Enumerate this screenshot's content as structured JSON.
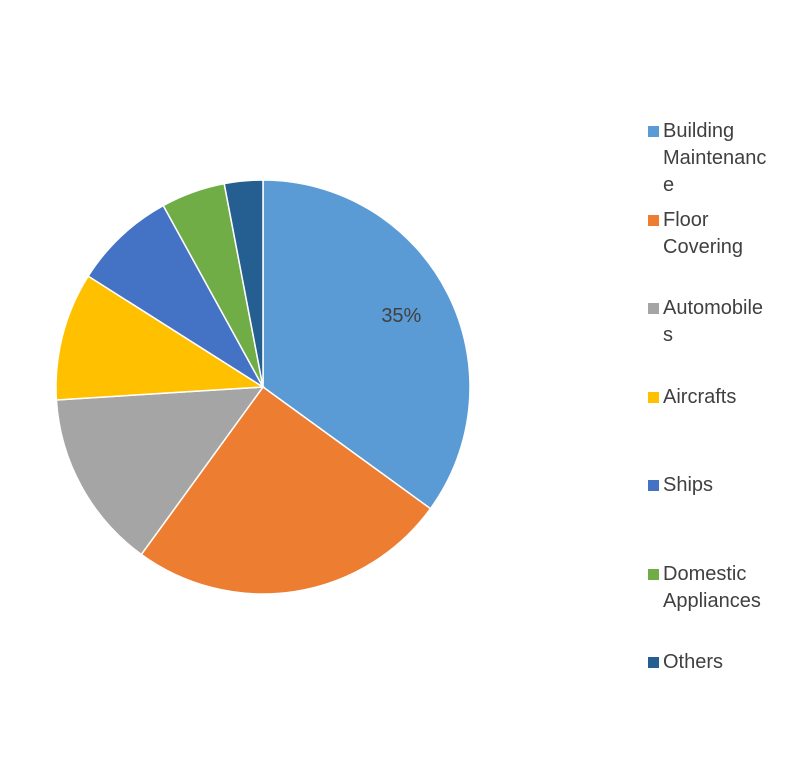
{
  "chart_data": {
    "type": "pie",
    "categories": [
      "Building Maintenance",
      "Floor Covering",
      "Automobiles",
      "Aircrafts",
      "Ships",
      "Domestic Appliances",
      "Others"
    ],
    "values": [
      35,
      25,
      14,
      10,
      8,
      5,
      3
    ],
    "value_labels": [
      "35%",
      null,
      null,
      null,
      null,
      null,
      null
    ],
    "colors": [
      "#5b9bd5",
      "#ed7d31",
      "#a5a5a5",
      "#ffc000",
      "#4472c4",
      "#70ad47",
      "#255e91"
    ],
    "legend": "right"
  }
}
